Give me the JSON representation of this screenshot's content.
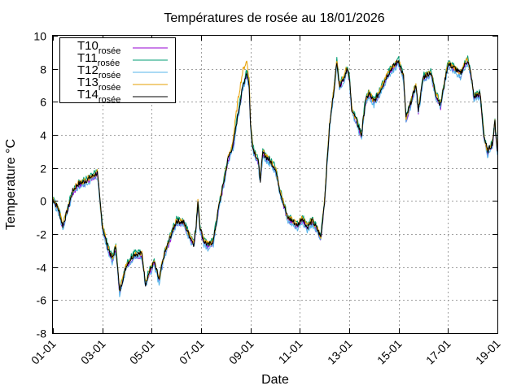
{
  "chart_data": {
    "type": "line",
    "title": "Températures de rosée au 18/01/2026",
    "xlabel": "Date",
    "ylabel": "Temperature °C",
    "xlim": [
      1,
      19
    ],
    "ylim": [
      -8,
      10
    ],
    "x_ticks": [
      {
        "value": 1,
        "label": "01-01"
      },
      {
        "value": 3,
        "label": "03-01"
      },
      {
        "value": 5,
        "label": "05-01"
      },
      {
        "value": 7,
        "label": "07-01"
      },
      {
        "value": 9,
        "label": "09-01"
      },
      {
        "value": 11,
        "label": "11-01"
      },
      {
        "value": 13,
        "label": "13-01"
      },
      {
        "value": 15,
        "label": "15-01"
      },
      {
        "value": 17,
        "label": "17-01"
      },
      {
        "value": 19,
        "label": "19-01"
      }
    ],
    "y_ticks": [
      {
        "value": -8,
        "label": "-8"
      },
      {
        "value": -6,
        "label": "-6"
      },
      {
        "value": -4,
        "label": "-4"
      },
      {
        "value": -2,
        "label": "-2"
      },
      {
        "value": 0,
        "label": "0"
      },
      {
        "value": 2,
        "label": "2"
      },
      {
        "value": 4,
        "label": "4"
      },
      {
        "value": 6,
        "label": "6"
      },
      {
        "value": 8,
        "label": "8"
      },
      {
        "value": 10,
        "label": "10"
      }
    ],
    "grid": true,
    "legend_position": "top-left",
    "series": [
      {
        "name": "T10",
        "subscript": "rosée",
        "color": "#9400d3",
        "offset": -0.12,
        "bump": 0
      },
      {
        "name": "T11",
        "subscript": "rosée",
        "color": "#009e73",
        "offset": 0.12,
        "bump": 0
      },
      {
        "name": "T12",
        "subscript": "rosée",
        "color": "#56b4e9",
        "offset": -0.22,
        "bump": 0
      },
      {
        "name": "T13",
        "subscript": "rosée",
        "color": "#e69f00",
        "offset": 0.05,
        "bump": 1
      },
      {
        "name": "T14",
        "subscript": "rosée",
        "color": "#000000",
        "offset": 0.0,
        "bump": 0
      }
    ],
    "base_curve": [
      [
        1.0,
        0.1
      ],
      [
        1.2,
        -0.4
      ],
      [
        1.4,
        -1.5
      ],
      [
        1.6,
        -0.5
      ],
      [
        1.8,
        0.6
      ],
      [
        2.0,
        1.0
      ],
      [
        2.3,
        1.2
      ],
      [
        2.6,
        1.5
      ],
      [
        2.8,
        1.7
      ],
      [
        3.0,
        -1.5
      ],
      [
        3.2,
        -2.7
      ],
      [
        3.4,
        -3.5
      ],
      [
        3.55,
        -2.8
      ],
      [
        3.7,
        -5.5
      ],
      [
        3.85,
        -4.6
      ],
      [
        4.0,
        -3.8
      ],
      [
        4.3,
        -3.2
      ],
      [
        4.6,
        -3.2
      ],
      [
        4.75,
        -5.0
      ],
      [
        4.9,
        -4.3
      ],
      [
        5.1,
        -3.7
      ],
      [
        5.3,
        -4.8
      ],
      [
        5.5,
        -3.3
      ],
      [
        5.8,
        -2.0
      ],
      [
        6.0,
        -1.2
      ],
      [
        6.3,
        -1.3
      ],
      [
        6.5,
        -2.0
      ],
      [
        6.7,
        -2.6
      ],
      [
        6.8,
        -1.6
      ],
      [
        6.87,
        0.0
      ],
      [
        6.95,
        -1.5
      ],
      [
        7.1,
        -2.4
      ],
      [
        7.3,
        -2.7
      ],
      [
        7.5,
        -2.4
      ],
      [
        7.7,
        -0.5
      ],
      [
        7.9,
        1.0
      ],
      [
        8.1,
        2.6
      ],
      [
        8.3,
        3.4
      ],
      [
        8.5,
        5.3
      ],
      [
        8.7,
        7.0
      ],
      [
        8.85,
        7.8
      ],
      [
        8.95,
        7.0
      ],
      [
        9.0,
        4.6
      ],
      [
        9.1,
        3.2
      ],
      [
        9.3,
        2.5
      ],
      [
        9.4,
        1.3
      ],
      [
        9.5,
        2.9
      ],
      [
        9.8,
        2.4
      ],
      [
        10.0,
        2.0
      ],
      [
        10.2,
        0.6
      ],
      [
        10.5,
        -1.0
      ],
      [
        10.7,
        -1.2
      ],
      [
        10.9,
        -1.5
      ],
      [
        11.1,
        -1.0
      ],
      [
        11.3,
        -1.6
      ],
      [
        11.5,
        -1.2
      ],
      [
        11.7,
        -1.7
      ],
      [
        11.85,
        -2.2
      ],
      [
        12.0,
        0.0
      ],
      [
        12.2,
        4.5
      ],
      [
        12.4,
        7.0
      ],
      [
        12.5,
        8.5
      ],
      [
        12.6,
        7.0
      ],
      [
        12.8,
        7.5
      ],
      [
        12.9,
        8.0
      ],
      [
        13.0,
        7.5
      ],
      [
        13.1,
        5.6
      ],
      [
        13.3,
        4.8
      ],
      [
        13.5,
        4.0
      ],
      [
        13.65,
        6.0
      ],
      [
        13.8,
        6.5
      ],
      [
        14.0,
        6.0
      ],
      [
        14.2,
        6.5
      ],
      [
        14.5,
        7.5
      ],
      [
        14.7,
        8.0
      ],
      [
        15.0,
        8.5
      ],
      [
        15.2,
        7.5
      ],
      [
        15.3,
        5.0
      ],
      [
        15.5,
        6.0
      ],
      [
        15.7,
        7.0
      ],
      [
        15.8,
        5.5
      ],
      [
        16.0,
        7.5
      ],
      [
        16.3,
        7.8
      ],
      [
        16.5,
        6.5
      ],
      [
        16.7,
        5.8
      ],
      [
        16.9,
        7.5
      ],
      [
        17.0,
        8.3
      ],
      [
        17.3,
        8.0
      ],
      [
        17.5,
        7.7
      ],
      [
        17.7,
        8.3
      ],
      [
        17.8,
        8.5
      ],
      [
        17.95,
        7.5
      ],
      [
        18.05,
        6.3
      ],
      [
        18.3,
        6.5
      ],
      [
        18.45,
        4.0
      ],
      [
        18.6,
        3.0
      ],
      [
        18.8,
        3.5
      ],
      [
        18.9,
        4.8
      ],
      [
        19.0,
        3.0
      ]
    ]
  }
}
